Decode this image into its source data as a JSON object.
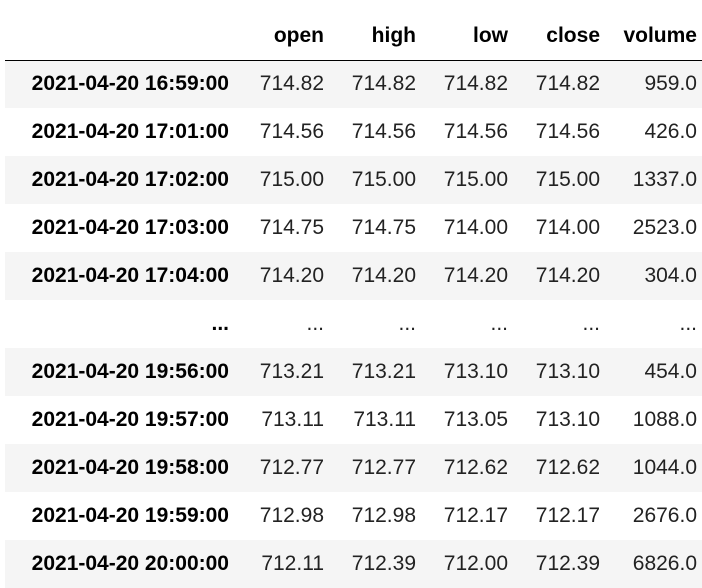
{
  "table": {
    "columns": [
      "open",
      "high",
      "low",
      "close",
      "volume"
    ],
    "rows": [
      {
        "index": "2021-04-20 16:59:00",
        "values": [
          "714.82",
          "714.82",
          "714.82",
          "714.82",
          "959.0"
        ]
      },
      {
        "index": "2021-04-20 17:01:00",
        "values": [
          "714.56",
          "714.56",
          "714.56",
          "714.56",
          "426.0"
        ]
      },
      {
        "index": "2021-04-20 17:02:00",
        "values": [
          "715.00",
          "715.00",
          "715.00",
          "715.00",
          "1337.0"
        ]
      },
      {
        "index": "2021-04-20 17:03:00",
        "values": [
          "714.75",
          "714.75",
          "714.00",
          "714.00",
          "2523.0"
        ]
      },
      {
        "index": "2021-04-20 17:04:00",
        "values": [
          "714.20",
          "714.20",
          "714.20",
          "714.20",
          "304.0"
        ]
      },
      {
        "index": "...",
        "values": [
          "...",
          "...",
          "...",
          "...",
          "..."
        ]
      },
      {
        "index": "2021-04-20 19:56:00",
        "values": [
          "713.21",
          "713.21",
          "713.10",
          "713.10",
          "454.0"
        ]
      },
      {
        "index": "2021-04-20 19:57:00",
        "values": [
          "713.11",
          "713.11",
          "713.05",
          "713.10",
          "1088.0"
        ]
      },
      {
        "index": "2021-04-20 19:58:00",
        "values": [
          "712.77",
          "712.77",
          "712.62",
          "712.62",
          "1044.0"
        ]
      },
      {
        "index": "2021-04-20 19:59:00",
        "values": [
          "712.98",
          "712.98",
          "712.17",
          "712.17",
          "2676.0"
        ]
      },
      {
        "index": "2021-04-20 20:00:00",
        "values": [
          "712.11",
          "712.39",
          "712.00",
          "712.39",
          "6826.0"
        ]
      }
    ]
  }
}
